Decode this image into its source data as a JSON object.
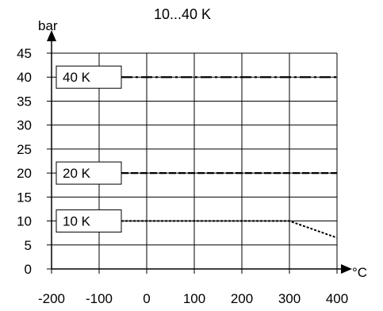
{
  "chart_data": {
    "type": "line",
    "title": "10...40 K",
    "ylabel": "bar",
    "xlabel": "°C",
    "xlim": [
      -200,
      400
    ],
    "ylim": [
      0,
      45
    ],
    "x_ticks": [
      "-200",
      "-100",
      "0",
      "100",
      "200",
      "300",
      "400"
    ],
    "y_ticks": [
      "0",
      "5",
      "10",
      "15",
      "20",
      "25",
      "30",
      "35",
      "40",
      "45"
    ],
    "grid": true,
    "series": [
      {
        "name": "40 K",
        "style": "dash-dot",
        "points": [
          [
            -200,
            40
          ],
          [
            400,
            40
          ]
        ]
      },
      {
        "name": "20 K",
        "style": "dashed",
        "points": [
          [
            -200,
            20
          ],
          [
            400,
            20
          ]
        ]
      },
      {
        "name": "10 K",
        "style": "dotted",
        "points": [
          [
            -200,
            10
          ],
          [
            300,
            10
          ],
          [
            400,
            6.5
          ]
        ]
      }
    ]
  }
}
